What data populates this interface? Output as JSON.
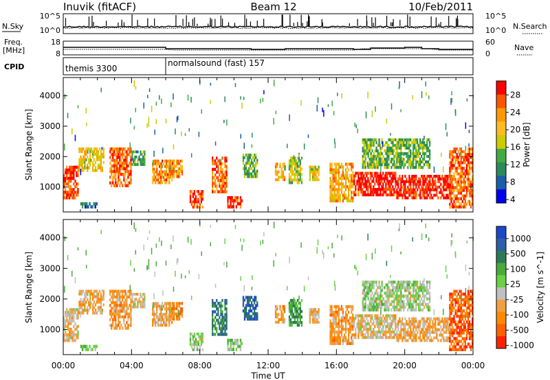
{
  "header": {
    "station": "Inuvik (fitACF)",
    "beam": "Beam 12",
    "date": "10/Feb/2011"
  },
  "nsky": {
    "label": "N.Sky",
    "right_label": "N.Search",
    "ticks_left": [
      "10^5",
      "10^0"
    ],
    "ticks_right": [
      "10^5",
      "10^0"
    ]
  },
  "freq": {
    "label_line1": "Freq.",
    "label_line2": "[MHz]",
    "right_label": "Nave",
    "ticks_left": [
      "18",
      "8"
    ],
    "ticks_right": [
      "60",
      "0"
    ]
  },
  "cpid": {
    "label": "CPID",
    "segments": [
      {
        "start_hour": 0,
        "text": "themis 3300"
      },
      {
        "start_hour": 6,
        "text": "normalsound (fast) 157"
      }
    ]
  },
  "axes": {
    "x_label": "Time UT",
    "x_ticks": [
      "00:00",
      "04:00",
      "08:00",
      "12:00",
      "16:00",
      "20:00",
      "00:00"
    ],
    "y_label": "Slant Range [km]",
    "y_ticks": [
      "4000",
      "3000",
      "2000",
      "1000"
    ]
  },
  "power_scale": {
    "label": "Power [dB]",
    "ticks": [
      "28",
      "24",
      "20",
      "16",
      "12",
      "8",
      "4"
    ],
    "colors": [
      "#ff0000",
      "#ff5500",
      "#ff9900",
      "#ffbb22",
      "#cccc00",
      "#44aa44",
      "#2a8a5a",
      "#1a5ea8",
      "#0000ee"
    ]
  },
  "velocity_scale": {
    "label": "Velocity [m s^-1]",
    "ticks": [
      "1000",
      "500",
      "100",
      "25",
      "-25",
      "-100",
      "-500",
      "-1000"
    ],
    "colors": [
      "#1b48c8",
      "#2d5ea8",
      "#2d7a5a",
      "#4aaa3a",
      "#6ad044",
      "#c0c0c0",
      "#f0a040",
      "#ff8800",
      "#ff6000",
      "#ff2200"
    ]
  },
  "chart_data": {
    "type": "heatmap",
    "panels": [
      "Power",
      "Velocity"
    ],
    "x_range_hours": [
      0,
      24
    ],
    "y_range_km": [
      180,
      4600
    ],
    "power_range_db": [
      0,
      30
    ],
    "velocity_range_ms": [
      -1000,
      1000
    ],
    "regions": [
      {
        "t0": 0.0,
        "t1": 0.9,
        "r0": 600,
        "r1": 1700,
        "power": 26,
        "velocity": -200
      },
      {
        "t0": 0.9,
        "t1": 2.4,
        "r0": 1500,
        "r1": 2300,
        "power": 18,
        "velocity": -300
      },
      {
        "t0": 1.0,
        "t1": 2.0,
        "r0": 300,
        "r1": 500,
        "power": 6,
        "velocity": 50
      },
      {
        "t0": 2.7,
        "t1": 4.0,
        "r0": 1000,
        "r1": 2300,
        "power": 24,
        "velocity": -400
      },
      {
        "t0": 4.0,
        "t1": 4.8,
        "r0": 1700,
        "r1": 2200,
        "power": 10,
        "velocity": -200
      },
      {
        "t0": 5.2,
        "t1": 6.4,
        "r0": 1100,
        "r1": 1900,
        "power": 22,
        "velocity": -300
      },
      {
        "t0": 6.2,
        "t1": 7.0,
        "r0": 1300,
        "r1": 1900,
        "power": 22,
        "velocity": -500
      },
      {
        "t0": 7.4,
        "t1": 8.2,
        "r0": 300,
        "r1": 900,
        "power": 26,
        "velocity": 20
      },
      {
        "t0": 8.7,
        "t1": 9.6,
        "r0": 800,
        "r1": 2000,
        "power": 24,
        "velocity": 500
      },
      {
        "t0": 9.6,
        "t1": 10.5,
        "r0": 300,
        "r1": 700,
        "power": 28,
        "velocity": 50
      },
      {
        "t0": 10.5,
        "t1": 11.4,
        "r0": 1300,
        "r1": 2100,
        "power": 12,
        "velocity": 700
      },
      {
        "t0": 12.4,
        "t1": 13.0,
        "r0": 1200,
        "r1": 1800,
        "power": 20,
        "velocity": -400
      },
      {
        "t0": 13.2,
        "t1": 14.0,
        "r0": 1100,
        "r1": 2000,
        "power": 14,
        "velocity": 300
      },
      {
        "t0": 14.4,
        "t1": 15.0,
        "r0": 1200,
        "r1": 1700,
        "power": 16,
        "velocity": -300
      },
      {
        "t0": 15.6,
        "t1": 17.0,
        "r0": 500,
        "r1": 1800,
        "power": 20,
        "velocity": -400
      },
      {
        "t0": 17.0,
        "t1": 19.5,
        "r0": 700,
        "r1": 1500,
        "power": 28,
        "velocity": -200
      },
      {
        "t0": 19.5,
        "t1": 22.8,
        "r0": 600,
        "r1": 1400,
        "power": 28,
        "velocity": -300
      },
      {
        "t0": 17.5,
        "t1": 21.5,
        "r0": 1600,
        "r1": 2600,
        "power": 12,
        "velocity": 10
      },
      {
        "t0": 22.6,
        "t1": 24.0,
        "r0": 300,
        "r1": 2300,
        "power": 24,
        "velocity": -700
      }
    ]
  }
}
